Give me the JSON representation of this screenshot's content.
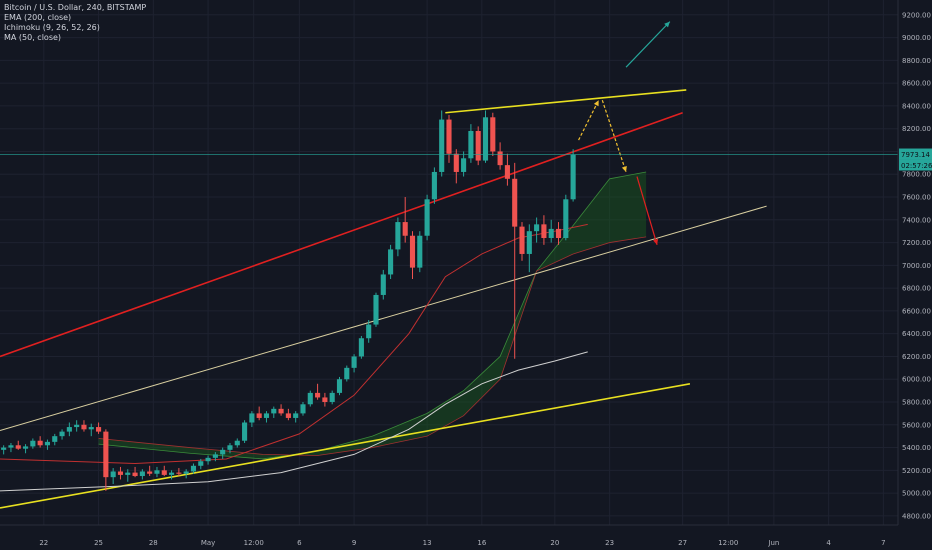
{
  "legend": {
    "symbol": "Bitcoin / U.S. Dollar, 240, BITSTAMP",
    "ema": "EMA (200, close)",
    "ichimoku": "Ichimoku (9, 26, 52, 26)",
    "ma": "MA (50, close)"
  },
  "colors": {
    "background": "#131722",
    "grid": "#1e2230",
    "up": "#26a69a",
    "down": "#ef5350",
    "price_line": "#26a69a",
    "trend_red": "#e02020",
    "trend_yellow": "#e8e020",
    "trend_beige": "#d9cfa0",
    "ema": "#d0d0d0",
    "ma": "#5a9ab8",
    "ichimoku_cloud_up": "#1b5e20",
    "ichimoku_cloud_down": "#7a1f1f",
    "arrow_yellow": "#f0c030",
    "arrow_red": "#e02020",
    "arrow_teal": "#26a69a"
  },
  "price_badges": {
    "last_price": "7973.14",
    "countdown": "02:57:26"
  },
  "chart_data": {
    "type": "candlestick",
    "x_labels": [
      "22",
      "25",
      "28",
      "May",
      "12:00",
      "6",
      "9",
      "13",
      "16",
      "20",
      "23",
      "27",
      "12:00",
      "Jun",
      "4",
      "7"
    ],
    "x_label_days": [
      0,
      3,
      6,
      9,
      11.5,
      14,
      17,
      21,
      24,
      28,
      31,
      35,
      37.5,
      40,
      43,
      46
    ],
    "y_ticks": [
      4800,
      5000,
      5200,
      5400,
      5600,
      5800,
      6000,
      6200,
      6400,
      6600,
      6800,
      7000,
      7200,
      7400,
      7600,
      7800,
      8000,
      8200,
      8400,
      8600,
      8800,
      9000,
      9200
    ],
    "y_range": [
      4720,
      9330
    ],
    "day_range": [
      -2.4,
      46.8
    ],
    "last_price": 7973.14,
    "candles": [
      [
        -2.2,
        5380,
        5420,
        5340,
        5400
      ],
      [
        -1.8,
        5400,
        5440,
        5360,
        5420
      ],
      [
        -1.4,
        5420,
        5460,
        5380,
        5390
      ],
      [
        -1.0,
        5390,
        5430,
        5350,
        5410
      ],
      [
        -0.6,
        5410,
        5480,
        5390,
        5460
      ],
      [
        -0.2,
        5460,
        5500,
        5400,
        5420
      ],
      [
        0.2,
        5420,
        5470,
        5380,
        5450
      ],
      [
        0.6,
        5450,
        5520,
        5420,
        5500
      ],
      [
        1.0,
        5500,
        5560,
        5470,
        5540
      ],
      [
        1.4,
        5540,
        5620,
        5500,
        5580
      ],
      [
        1.8,
        5580,
        5640,
        5540,
        5600
      ],
      [
        2.2,
        5600,
        5640,
        5540,
        5560
      ],
      [
        2.6,
        5560,
        5610,
        5500,
        5580
      ],
      [
        3.0,
        5580,
        5620,
        5520,
        5540
      ],
      [
        3.4,
        5540,
        5560,
        5020,
        5140
      ],
      [
        3.8,
        5140,
        5220,
        5080,
        5190
      ],
      [
        4.2,
        5190,
        5230,
        5120,
        5160
      ],
      [
        4.6,
        5160,
        5210,
        5100,
        5180
      ],
      [
        5.0,
        5180,
        5230,
        5140,
        5150
      ],
      [
        5.4,
        5150,
        5210,
        5120,
        5190
      ],
      [
        5.8,
        5190,
        5240,
        5150,
        5170
      ],
      [
        6.2,
        5170,
        5230,
        5140,
        5200
      ],
      [
        6.6,
        5200,
        5240,
        5150,
        5160
      ],
      [
        7.0,
        5160,
        5200,
        5120,
        5180
      ],
      [
        7.4,
        5180,
        5220,
        5150,
        5170
      ],
      [
        7.8,
        5170,
        5210,
        5130,
        5190
      ],
      [
        8.2,
        5190,
        5260,
        5170,
        5240
      ],
      [
        8.6,
        5240,
        5300,
        5210,
        5280
      ],
      [
        9.0,
        5280,
        5330,
        5250,
        5310
      ],
      [
        9.4,
        5310,
        5360,
        5280,
        5340
      ],
      [
        9.8,
        5340,
        5400,
        5300,
        5380
      ],
      [
        10.2,
        5380,
        5440,
        5350,
        5420
      ],
      [
        10.6,
        5420,
        5480,
        5400,
        5460
      ],
      [
        11.0,
        5460,
        5640,
        5440,
        5620
      ],
      [
        11.4,
        5620,
        5720,
        5580,
        5700
      ],
      [
        11.8,
        5700,
        5760,
        5640,
        5660
      ],
      [
        12.2,
        5660,
        5720,
        5620,
        5700
      ],
      [
        12.6,
        5700,
        5760,
        5660,
        5740
      ],
      [
        13.0,
        5740,
        5780,
        5680,
        5700
      ],
      [
        13.4,
        5700,
        5740,
        5640,
        5660
      ],
      [
        13.8,
        5660,
        5720,
        5620,
        5700
      ],
      [
        14.2,
        5700,
        5800,
        5680,
        5780
      ],
      [
        14.6,
        5780,
        5900,
        5760,
        5880
      ],
      [
        15.0,
        5880,
        5960,
        5820,
        5840
      ],
      [
        15.4,
        5840,
        5880,
        5760,
        5800
      ],
      [
        15.8,
        5800,
        5900,
        5780,
        5880
      ],
      [
        16.2,
        5880,
        6020,
        5860,
        6000
      ],
      [
        16.6,
        6000,
        6120,
        5980,
        6100
      ],
      [
        17.0,
        6100,
        6220,
        6060,
        6200
      ],
      [
        17.4,
        6200,
        6380,
        6180,
        6360
      ],
      [
        17.8,
        6360,
        6520,
        6320,
        6480
      ],
      [
        18.2,
        6480,
        6760,
        6460,
        6740
      ],
      [
        18.6,
        6740,
        6960,
        6700,
        6920
      ],
      [
        19.0,
        6920,
        7180,
        6880,
        7140
      ],
      [
        19.4,
        7140,
        7420,
        7080,
        7380
      ],
      [
        19.8,
        7380,
        7600,
        7200,
        7260
      ],
      [
        20.2,
        7260,
        7300,
        6880,
        6980
      ],
      [
        20.6,
        6980,
        7300,
        6940,
        7260
      ],
      [
        21.0,
        7260,
        7620,
        7220,
        7580
      ],
      [
        21.4,
        7580,
        7860,
        7540,
        7820
      ],
      [
        21.8,
        7820,
        8360,
        7780,
        8280
      ],
      [
        22.2,
        8280,
        8320,
        7900,
        7980
      ],
      [
        22.6,
        7980,
        8020,
        7720,
        7820
      ],
      [
        23.0,
        7820,
        8000,
        7780,
        7940
      ],
      [
        23.4,
        7940,
        8240,
        7900,
        8180
      ],
      [
        23.8,
        8180,
        8220,
        7880,
        7920
      ],
      [
        24.2,
        7920,
        8360,
        7900,
        8300
      ],
      [
        24.6,
        8300,
        8340,
        7960,
        8000
      ],
      [
        25.0,
        8000,
        8080,
        7840,
        7880
      ],
      [
        25.4,
        7880,
        7980,
        7700,
        7760
      ],
      [
        25.8,
        7760,
        7900,
        6180,
        7340
      ],
      [
        26.2,
        7340,
        7380,
        7040,
        7100
      ],
      [
        26.6,
        7100,
        7360,
        6940,
        7300
      ],
      [
        27.0,
        7300,
        7420,
        7200,
        7360
      ],
      [
        27.4,
        7360,
        7440,
        7180,
        7240
      ],
      [
        27.8,
        7240,
        7400,
        7200,
        7320
      ],
      [
        28.2,
        7320,
        7380,
        7180,
        7240
      ],
      [
        28.6,
        7240,
        7620,
        7220,
        7580
      ],
      [
        29.0,
        7580,
        8020,
        7560,
        7973.14
      ]
    ],
    "trendlines": [
      {
        "color": "red",
        "from": [
          -2.4,
          6200
        ],
        "to": [
          35.0,
          8340
        ]
      },
      {
        "color": "yellow",
        "from": [
          -2.4,
          4870
        ],
        "to": [
          35.4,
          5960
        ]
      },
      {
        "color": "yellow",
        "from": [
          22.0,
          8340
        ],
        "to": [
          35.2,
          8540
        ]
      },
      {
        "color": "beige",
        "from": [
          -2.4,
          5550
        ],
        "to": [
          39.6,
          7520
        ]
      }
    ],
    "ema_200": [
      [
        -2.4,
        5020
      ],
      [
        4,
        5060
      ],
      [
        9,
        5100
      ],
      [
        13,
        5180
      ],
      [
        17,
        5340
      ],
      [
        20,
        5560
      ],
      [
        22,
        5780
      ],
      [
        24,
        5960
      ],
      [
        26,
        6080
      ],
      [
        28,
        6160
      ],
      [
        29.8,
        6240
      ]
    ],
    "ma_50": [
      [
        -2.4,
        5300
      ],
      [
        5,
        5260
      ],
      [
        10,
        5300
      ],
      [
        14,
        5520
      ],
      [
        17,
        5860
      ],
      [
        20,
        6400
      ],
      [
        22,
        6900
      ],
      [
        24,
        7100
      ],
      [
        26,
        7240
      ],
      [
        28,
        7300
      ],
      [
        29.8,
        7360
      ]
    ],
    "ichimoku": {
      "span_a": [
        [
          3,
          5430
        ],
        [
          8,
          5350
        ],
        [
          12,
          5300
        ],
        [
          15,
          5370
        ],
        [
          18,
          5500
        ],
        [
          21,
          5700
        ],
        [
          23,
          5900
        ],
        [
          25,
          6200
        ],
        [
          27,
          6950
        ],
        [
          29,
          7350
        ],
        [
          31,
          7760
        ],
        [
          33,
          7820
        ]
      ],
      "span_b": [
        [
          3,
          5480
        ],
        [
          8,
          5400
        ],
        [
          12,
          5340
        ],
        [
          15,
          5330
        ],
        [
          18,
          5400
        ],
        [
          21,
          5500
        ],
        [
          23,
          5680
        ],
        [
          25,
          6000
        ],
        [
          27,
          6950
        ],
        [
          29,
          7100
        ],
        [
          31,
          7200
        ],
        [
          33,
          7250
        ]
      ]
    },
    "projection_arrows": [
      {
        "color": "yellow",
        "points": [
          [
            29.3,
            8100
          ],
          [
            30.4,
            8450
          ]
        ]
      },
      {
        "color": "yellow",
        "points": [
          [
            30.6,
            8450
          ],
          [
            31.9,
            7820
          ]
        ]
      },
      {
        "color": "red",
        "points": [
          [
            32.5,
            7780
          ],
          [
            33.6,
            7180
          ]
        ]
      },
      {
        "color": "teal",
        "points": [
          [
            31.9,
            8740
          ],
          [
            34.3,
            9140
          ]
        ]
      }
    ]
  }
}
